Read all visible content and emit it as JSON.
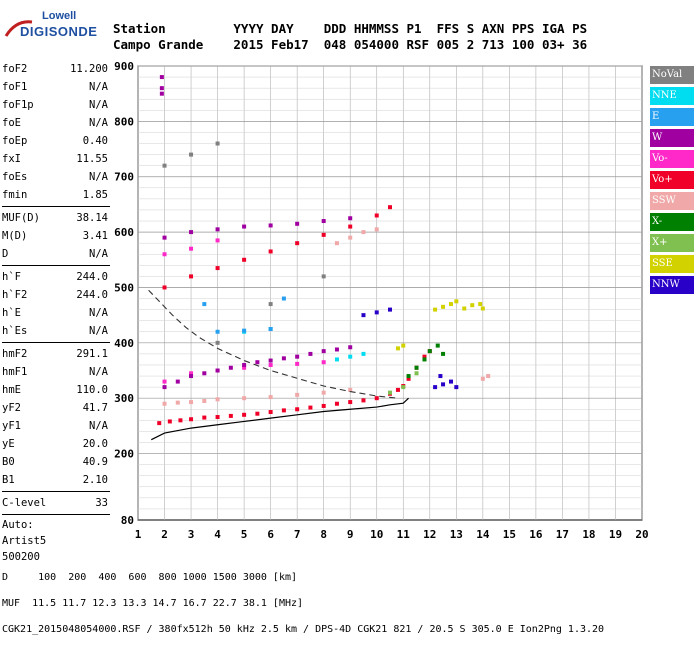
{
  "logo": {
    "line1": "Lowell",
    "line2": "DIGISONDE"
  },
  "header": {
    "row1": "Station         YYYY DAY    DDD HHMMSS P1  FFS S AXN PPS IGA PS",
    "row2": "Campo Grande    2015 Feb17  048 054000 RSF 005 2 713 100 03+ 36"
  },
  "params": {
    "group1": [
      {
        "k": "foF2",
        "v": "11.200"
      },
      {
        "k": "foF1",
        "v": "N/A"
      },
      {
        "k": "foF1p",
        "v": "N/A"
      },
      {
        "k": "foE",
        "v": "N/A"
      },
      {
        "k": "foEp",
        "v": "0.40"
      },
      {
        "k": "fxI",
        "v": "11.55"
      },
      {
        "k": "foEs",
        "v": "N/A"
      },
      {
        "k": "fmin",
        "v": "1.85"
      }
    ],
    "group2": [
      {
        "k": "MUF(D)",
        "v": "38.14"
      },
      {
        "k": "M(D)",
        "v": "3.41"
      },
      {
        "k": "D",
        "v": "N/A"
      }
    ],
    "group3": [
      {
        "k": "h`F",
        "v": "244.0"
      },
      {
        "k": "h`F2",
        "v": "244.0"
      },
      {
        "k": "h`E",
        "v": "N/A"
      },
      {
        "k": "h`Es",
        "v": "N/A"
      }
    ],
    "group4": [
      {
        "k": "hmF2",
        "v": "291.1"
      },
      {
        "k": "hmF1",
        "v": "N/A"
      },
      {
        "k": "hmE",
        "v": "110.0"
      },
      {
        "k": "yF2",
        "v": "41.7"
      },
      {
        "k": "yF1",
        "v": "N/A"
      },
      {
        "k": "yE",
        "v": "20.0"
      },
      {
        "k": "B0",
        "v": "40.9"
      },
      {
        "k": "B1",
        "v": "2.10"
      }
    ],
    "group5": [
      {
        "k": "C-level",
        "v": "33"
      }
    ],
    "auto_label": "Auto:",
    "artist": "Artist5",
    "version": "500200"
  },
  "legend": [
    {
      "label": "NoVal",
      "color": "#808080"
    },
    {
      "label": "NNE",
      "color": "#00dcf0"
    },
    {
      "label": "E",
      "color": "#28a0f0"
    },
    {
      "label": "W",
      "color": "#a000a0"
    },
    {
      "label": "Vo-",
      "color": "#ff28c8"
    },
    {
      "label": "Vo+",
      "color": "#f00028"
    },
    {
      "label": "SSW",
      "color": "#f0a8a8"
    },
    {
      "label": "X-",
      "color": "#008000"
    },
    {
      "label": "X+",
      "color": "#80c050"
    },
    {
      "label": "SSE",
      "color": "#d2d200"
    },
    {
      "label": "NNW",
      "color": "#2800c8"
    }
  ],
  "footer": {
    "row1": "D     100  200  400  600  800 1000 1500 3000 [km]",
    "row2": "MUF  11.5 11.7 12.3 13.3 14.7 16.7 22.7 38.1 [MHz]",
    "row3": "CGK21_2015048054000.RSF / 380fx512h 50 kHz 2.5 km / DPS-4D CGK21 821 / 20.5 S 305.0 E Ion2Png 1.3.20"
  },
  "chart_data": {
    "type": "scatter",
    "xlim": [
      1,
      20
    ],
    "ylim": [
      80,
      900
    ],
    "x_ticks": [
      1,
      2,
      3,
      4,
      5,
      6,
      7,
      8,
      9,
      10,
      11,
      12,
      13,
      14,
      15,
      16,
      17,
      18,
      19,
      20
    ],
    "y_ticks": [
      80,
      200,
      300,
      400,
      500,
      600,
      700,
      800,
      900
    ],
    "grid": true,
    "series": [
      {
        "name": "Vo+",
        "points": [
          [
            1.8,
            255
          ],
          [
            2.2,
            258
          ],
          [
            2.6,
            260
          ],
          [
            3.0,
            262
          ],
          [
            3.5,
            265
          ],
          [
            4.0,
            266
          ],
          [
            4.5,
            268
          ],
          [
            5.0,
            270
          ],
          [
            5.5,
            272
          ],
          [
            6.0,
            275
          ],
          [
            6.5,
            278
          ],
          [
            7.0,
            280
          ],
          [
            7.5,
            283
          ],
          [
            8.0,
            286
          ],
          [
            8.5,
            290
          ],
          [
            9.0,
            293
          ],
          [
            9.5,
            296
          ],
          [
            10.0,
            300
          ],
          [
            10.5,
            308
          ],
          [
            10.8,
            315
          ],
          [
            11.0,
            322
          ],
          [
            11.2,
            335
          ],
          [
            11.5,
            355
          ],
          [
            11.8,
            375
          ],
          [
            12.0,
            385
          ],
          [
            2.0,
            500
          ],
          [
            3.0,
            520
          ],
          [
            4.0,
            535
          ],
          [
            5.0,
            550
          ],
          [
            6.0,
            565
          ],
          [
            7.0,
            580
          ],
          [
            8.0,
            595
          ],
          [
            9.0,
            610
          ],
          [
            10.0,
            630
          ],
          [
            10.5,
            645
          ]
        ]
      },
      {
        "name": "Vo-",
        "points": [
          [
            2.0,
            330
          ],
          [
            3.0,
            345
          ],
          [
            4.0,
            350
          ],
          [
            5.0,
            355
          ],
          [
            6.0,
            360
          ],
          [
            7.0,
            362
          ],
          [
            8.0,
            365
          ],
          [
            2.0,
            560
          ],
          [
            3.0,
            570
          ],
          [
            4.0,
            585
          ]
        ]
      },
      {
        "name": "W",
        "points": [
          [
            2.0,
            320
          ],
          [
            2.5,
            330
          ],
          [
            3.0,
            340
          ],
          [
            3.5,
            345
          ],
          [
            4.0,
            350
          ],
          [
            4.5,
            355
          ],
          [
            5.0,
            360
          ],
          [
            5.5,
            365
          ],
          [
            6.0,
            368
          ],
          [
            6.5,
            372
          ],
          [
            7.0,
            375
          ],
          [
            7.5,
            380
          ],
          [
            8.0,
            385
          ],
          [
            8.5,
            388
          ],
          [
            9.0,
            392
          ],
          [
            2.0,
            590
          ],
          [
            3.0,
            600
          ],
          [
            4.0,
            605
          ],
          [
            5.0,
            610
          ],
          [
            6.0,
            612
          ],
          [
            7.0,
            615
          ],
          [
            8.0,
            620
          ],
          [
            9.0,
            625
          ],
          [
            1.9,
            850
          ],
          [
            1.9,
            880
          ],
          [
            1.9,
            860
          ]
        ]
      },
      {
        "name": "SSW",
        "points": [
          [
            2.0,
            290
          ],
          [
            2.5,
            292
          ],
          [
            3.0,
            293
          ],
          [
            3.5,
            295
          ],
          [
            4.0,
            298
          ],
          [
            5.0,
            300
          ],
          [
            6.0,
            302
          ],
          [
            7.0,
            306
          ],
          [
            8.0,
            310
          ],
          [
            9.0,
            315
          ],
          [
            8.5,
            580
          ],
          [
            9.0,
            590
          ],
          [
            9.5,
            600
          ],
          [
            10.0,
            605
          ],
          [
            14.0,
            335
          ],
          [
            14.2,
            340
          ]
        ]
      },
      {
        "name": "X-",
        "points": [
          [
            11.2,
            340
          ],
          [
            11.5,
            355
          ],
          [
            11.8,
            370
          ],
          [
            12.0,
            385
          ],
          [
            12.3,
            395
          ],
          [
            12.5,
            380
          ]
        ]
      },
      {
        "name": "X+",
        "points": [
          [
            10.5,
            310
          ],
          [
            11.0,
            320
          ],
          [
            11.5,
            345
          ]
        ]
      },
      {
        "name": "SSE",
        "points": [
          [
            12.2,
            460
          ],
          [
            12.5,
            465
          ],
          [
            12.8,
            470
          ],
          [
            13.0,
            475
          ],
          [
            13.3,
            462
          ],
          [
            13.6,
            468
          ],
          [
            13.9,
            470
          ],
          [
            14.0,
            462
          ],
          [
            10.8,
            390
          ],
          [
            11.0,
            395
          ]
        ]
      },
      {
        "name": "NNW",
        "points": [
          [
            12.2,
            320
          ],
          [
            12.5,
            325
          ],
          [
            12.8,
            330
          ],
          [
            13.0,
            320
          ],
          [
            12.4,
            340
          ],
          [
            9.5,
            450
          ],
          [
            10.0,
            455
          ],
          [
            10.5,
            460
          ]
        ]
      },
      {
        "name": "NNE",
        "points": [
          [
            8.5,
            370
          ],
          [
            9.0,
            375
          ],
          [
            9.5,
            380
          ],
          [
            5.0,
            420
          ],
          [
            6.0,
            425
          ]
        ]
      },
      {
        "name": "E",
        "points": [
          [
            4.0,
            420
          ],
          [
            5.0,
            422
          ],
          [
            6.0,
            425
          ],
          [
            3.5,
            470
          ],
          [
            6.5,
            480
          ]
        ]
      },
      {
        "name": "NoVal",
        "points": [
          [
            4.0,
            400
          ],
          [
            6.0,
            470
          ],
          [
            8.0,
            520
          ],
          [
            2.0,
            720
          ],
          [
            3.0,
            740
          ],
          [
            4.0,
            760
          ]
        ]
      }
    ],
    "profile_line": [
      [
        1.5,
        225
      ],
      [
        2.0,
        237
      ],
      [
        3.0,
        246
      ],
      [
        4.0,
        252
      ],
      [
        5.0,
        258
      ],
      [
        6.0,
        264
      ],
      [
        7.0,
        270
      ],
      [
        8.0,
        276
      ],
      [
        9.0,
        280
      ],
      [
        10.0,
        284
      ],
      [
        10.5,
        288
      ],
      [
        11.0,
        291
      ],
      [
        11.2,
        300
      ]
    ],
    "dashed_curve": [
      [
        1.4,
        495
      ],
      [
        1.8,
        475
      ],
      [
        2.3,
        450
      ],
      [
        2.8,
        428
      ],
      [
        3.3,
        410
      ],
      [
        4.0,
        390
      ],
      [
        5.0,
        368
      ],
      [
        6.0,
        350
      ],
      [
        7.0,
        336
      ],
      [
        8.0,
        322
      ],
      [
        9.0,
        312
      ],
      [
        10.0,
        304
      ],
      [
        10.8,
        300
      ]
    ]
  }
}
